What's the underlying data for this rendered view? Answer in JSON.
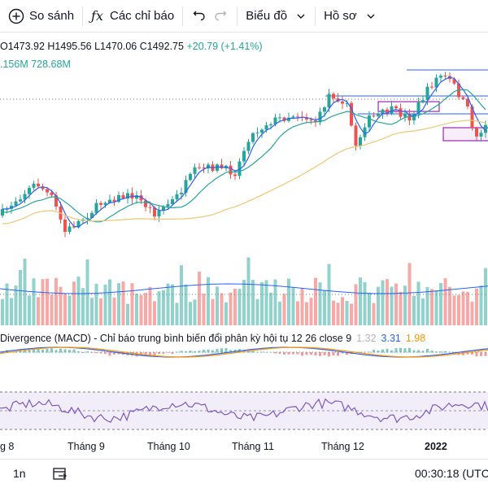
{
  "toolbar": {
    "compare_label": "So sánh",
    "indicators_label": "Các chỉ báo",
    "chart_label": "Biểu đồ",
    "profile_label": "Hồ sơ"
  },
  "ohlc": {
    "open": "O1473.92",
    "high": "H1495.56",
    "low": "L1470.06",
    "close": "C1492.75",
    "change": "+20.79 (+1.41%)"
  },
  "volume": {
    "text": ".156M  728.68M"
  },
  "macd": {
    "label": "Divergence (MACD) - Chỉ báo trung bình biến đổi phân kỳ hội tụ 12 26 close 9",
    "value1": "1.32",
    "value2": "3.31",
    "value3": "1.98"
  },
  "xaxis": {
    "labels": [
      "g 8",
      "Tháng 9",
      "Tháng 10",
      "Tháng 11",
      "Tháng 12",
      "2022"
    ]
  },
  "bottom": {
    "interval": "1n",
    "time": "00:30:18 (UTC"
  },
  "colors": {
    "up": "#26a69a",
    "down": "#ef5350",
    "ma_fast": "#2962ff",
    "ma_mid": "#26a69a",
    "ma_slow": "#f0c674",
    "rsi_line": "#7e57c2"
  }
}
